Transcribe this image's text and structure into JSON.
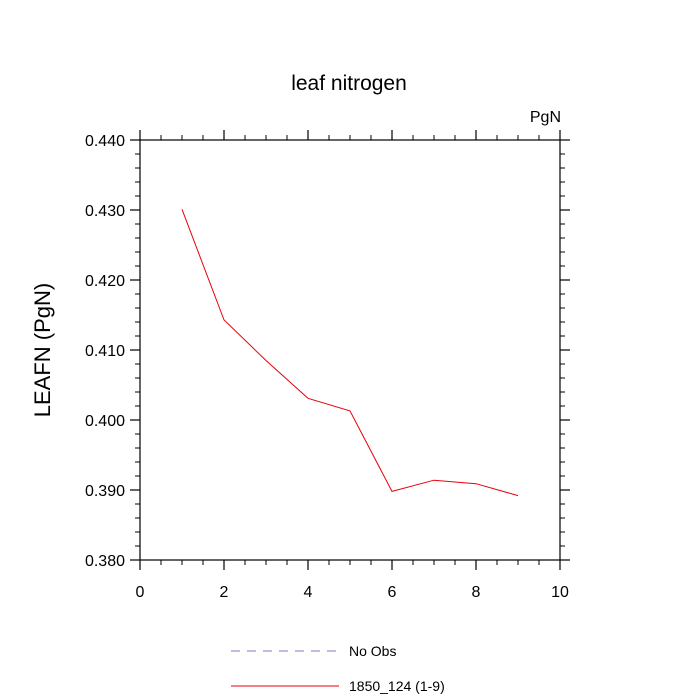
{
  "chart_data": {
    "type": "line",
    "title": "leaf nitrogen",
    "units_label": "PgN",
    "ylabel": "LEAFN  (PgN)",
    "xlabel": "",
    "xlim": [
      0,
      10
    ],
    "ylim": [
      0.38,
      0.44
    ],
    "x_ticks": [
      0,
      2,
      4,
      6,
      8,
      10
    ],
    "x_tick_labels": [
      "0",
      "2",
      "4",
      "6",
      "8",
      "10"
    ],
    "y_ticks": [
      0.38,
      0.39,
      0.4,
      0.41,
      0.42,
      0.43,
      0.44
    ],
    "y_tick_labels": [
      "0.380",
      "0.390",
      "0.400",
      "0.410",
      "0.420",
      "0.430",
      "0.440"
    ],
    "grid": false,
    "legend_position": "bottom",
    "series": [
      {
        "name": "No Obs",
        "color": "#7b7bd6",
        "dash": "dashed",
        "x": [],
        "y": []
      },
      {
        "name": "1850_124 (1-9)",
        "color": "#e8000b",
        "dash": "solid",
        "x": [
          1,
          2,
          3,
          4,
          5,
          6,
          7,
          8,
          9
        ],
        "y": [
          0.4301,
          0.4143,
          0.4085,
          0.4031,
          0.4013,
          0.3898,
          0.3914,
          0.3909,
          0.3892
        ]
      }
    ]
  }
}
